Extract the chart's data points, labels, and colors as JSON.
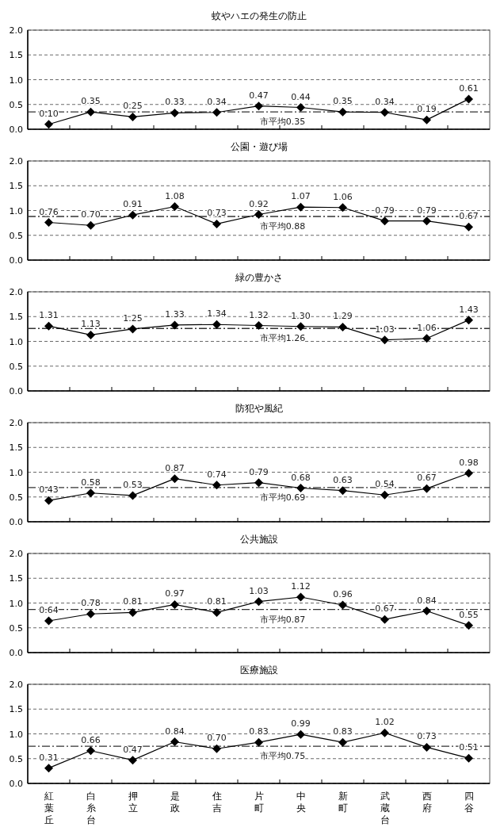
{
  "chart_data": [
    {
      "type": "line",
      "title": "蚊やハエの発生の防止",
      "categories": [
        "紅葉丘",
        "白糸台",
        "押立",
        "是政",
        "住吉",
        "片町",
        "中央",
        "新町",
        "武蔵台",
        "西府",
        "四谷"
      ],
      "series": [
        {
          "color": "#000000",
          "values": [
            0.1,
            0.35,
            0.25,
            0.33,
            0.34,
            0.47,
            0.44,
            0.35,
            0.34,
            0.19,
            0.61
          ],
          "value_labels": [
            "0.10",
            "0.35",
            "0.25",
            "0.33",
            "0.34",
            "0.47",
            "0.44",
            "0.35",
            "0.34",
            "0.19",
            "0.61"
          ]
        }
      ],
      "ylim": [
        0,
        2
      ],
      "yticks": [
        {
          "value": 0,
          "label": "0.0"
        },
        {
          "value": 0.5,
          "label": "0.5"
        },
        {
          "value": 1,
          "label": "1.0"
        },
        {
          "value": 1.5,
          "label": "1.5"
        },
        {
          "value": 2,
          "label": "2.0"
        }
      ],
      "grid": "y",
      "marker": "diamond",
      "tick_labels": "y",
      "ref_lines": [
        {
          "axis": "y",
          "value": 0.35,
          "label": "市平均0.35",
          "line_style": "dashdot"
        }
      ]
    },
    {
      "type": "line",
      "title": "公園・遊び場",
      "categories": [
        "紅葉丘",
        "白糸台",
        "押立",
        "是政",
        "住吉",
        "片町",
        "中央",
        "新町",
        "武蔵台",
        "西府",
        "四谷"
      ],
      "series": [
        {
          "color": "#000000",
          "values": [
            0.76,
            0.7,
            0.91,
            1.08,
            0.73,
            0.92,
            1.07,
            1.06,
            0.79,
            0.79,
            0.67
          ],
          "value_labels": [
            "0.76",
            "0.70",
            "0.91",
            "1.08",
            "0.73",
            "0.92",
            "1.07",
            "1.06",
            "0.79",
            "0.79",
            "0.67"
          ]
        }
      ],
      "ylim": [
        0,
        2
      ],
      "yticks": [
        {
          "value": 0,
          "label": "0.0"
        },
        {
          "value": 0.5,
          "label": "0.5"
        },
        {
          "value": 1,
          "label": "1.0"
        },
        {
          "value": 1.5,
          "label": "1.5"
        },
        {
          "value": 2,
          "label": "2.0"
        }
      ],
      "grid": "y",
      "marker": "diamond",
      "tick_labels": "y",
      "ref_lines": [
        {
          "axis": "y",
          "value": 0.88,
          "label": "市平均0.88",
          "line_style": "dashdot"
        }
      ]
    },
    {
      "type": "line",
      "title": "緑の豊かさ",
      "categories": [
        "紅葉丘",
        "白糸台",
        "押立",
        "是政",
        "住吉",
        "片町",
        "中央",
        "新町",
        "武蔵台",
        "西府",
        "四谷"
      ],
      "series": [
        {
          "color": "#000000",
          "values": [
            1.31,
            1.13,
            1.25,
            1.33,
            1.34,
            1.32,
            1.3,
            1.29,
            1.03,
            1.06,
            1.43
          ],
          "value_labels": [
            "1.31",
            "1.13",
            "1.25",
            "1.33",
            "1.34",
            "1.32",
            "1.30",
            "1.29",
            "1.03",
            "1.06",
            "1.43"
          ]
        }
      ],
      "ylim": [
        0,
        2
      ],
      "yticks": [
        {
          "value": 0,
          "label": "0.0"
        },
        {
          "value": 0.5,
          "label": "0.5"
        },
        {
          "value": 1,
          "label": "1.0"
        },
        {
          "value": 1.5,
          "label": "1.5"
        },
        {
          "value": 2,
          "label": "2.0"
        }
      ],
      "grid": "y",
      "marker": "diamond",
      "tick_labels": "y",
      "ref_lines": [
        {
          "axis": "y",
          "value": 1.26,
          "label": "市平均1.26",
          "line_style": "dashdot"
        }
      ]
    },
    {
      "type": "line",
      "title": "防犯や風紀",
      "categories": [
        "紅葉丘",
        "白糸台",
        "押立",
        "是政",
        "住吉",
        "片町",
        "中央",
        "新町",
        "武蔵台",
        "西府",
        "四谷"
      ],
      "series": [
        {
          "color": "#000000",
          "values": [
            0.43,
            0.58,
            0.53,
            0.87,
            0.74,
            0.79,
            0.68,
            0.63,
            0.54,
            0.67,
            0.98
          ],
          "value_labels": [
            "0.43",
            "0.58",
            "0.53",
            "0.87",
            "0.74",
            "0.79",
            "0.68",
            "0.63",
            "0.54",
            "0.67",
            "0.98"
          ]
        }
      ],
      "ylim": [
        0,
        2
      ],
      "yticks": [
        {
          "value": 0,
          "label": "0.0"
        },
        {
          "value": 0.5,
          "label": "0.5"
        },
        {
          "value": 1,
          "label": "1.0"
        },
        {
          "value": 1.5,
          "label": "1.5"
        },
        {
          "value": 2,
          "label": "2.0"
        }
      ],
      "grid": "y",
      "marker": "diamond",
      "tick_labels": "y",
      "ref_lines": [
        {
          "axis": "y",
          "value": 0.69,
          "label": "市平均0.69",
          "line_style": "dashdot"
        }
      ]
    },
    {
      "type": "line",
      "title": "公共施設",
      "categories": [
        "紅葉丘",
        "白糸台",
        "押立",
        "是政",
        "住吉",
        "片町",
        "中央",
        "新町",
        "武蔵台",
        "西府",
        "四谷"
      ],
      "series": [
        {
          "color": "#000000",
          "values": [
            0.64,
            0.78,
            0.81,
            0.97,
            0.81,
            1.03,
            1.12,
            0.96,
            0.67,
            0.84,
            0.55
          ],
          "value_labels": [
            "0.64",
            "0.78",
            "0.81",
            "0.97",
            "0.81",
            "1.03",
            "1.12",
            "0.96",
            "0.67",
            "0.84",
            "0.55"
          ]
        }
      ],
      "ylim": [
        0,
        2
      ],
      "yticks": [
        {
          "value": 0,
          "label": "0.0"
        },
        {
          "value": 0.5,
          "label": "0.5"
        },
        {
          "value": 1,
          "label": "1.0"
        },
        {
          "value": 1.5,
          "label": "1.5"
        },
        {
          "value": 2,
          "label": "2.0"
        }
      ],
      "grid": "y",
      "marker": "diamond",
      "tick_labels": "y",
      "ref_lines": [
        {
          "axis": "y",
          "value": 0.87,
          "label": "市平均0.87",
          "line_style": "dashdot"
        }
      ]
    },
    {
      "type": "line",
      "title": "医療施設",
      "categories": [
        "紅葉丘",
        "白糸台",
        "押立",
        "是政",
        "住吉",
        "片町",
        "中央",
        "新町",
        "武蔵台",
        "西府",
        "四谷"
      ],
      "series": [
        {
          "color": "#000000",
          "values": [
            0.31,
            0.66,
            0.47,
            0.84,
            0.7,
            0.83,
            0.99,
            0.83,
            1.02,
            0.73,
            0.51
          ],
          "value_labels": [
            "0.31",
            "0.66",
            "0.47",
            "0.84",
            "0.70",
            "0.83",
            "0.99",
            "0.83",
            "1.02",
            "0.73",
            "0.51"
          ]
        }
      ],
      "ylim": [
        0,
        2
      ],
      "yticks": [
        {
          "value": 0,
          "label": "0.0"
        },
        {
          "value": 0.5,
          "label": "0.5"
        },
        {
          "value": 1,
          "label": "1.0"
        },
        {
          "value": 1.5,
          "label": "1.5"
        },
        {
          "value": 2,
          "label": "2.0"
        }
      ],
      "grid": "y",
      "marker": "diamond",
      "ref_lines": [
        {
          "axis": "y",
          "value": 0.75,
          "label": "市平均0.75",
          "line_style": "dashdot"
        }
      ]
    }
  ]
}
